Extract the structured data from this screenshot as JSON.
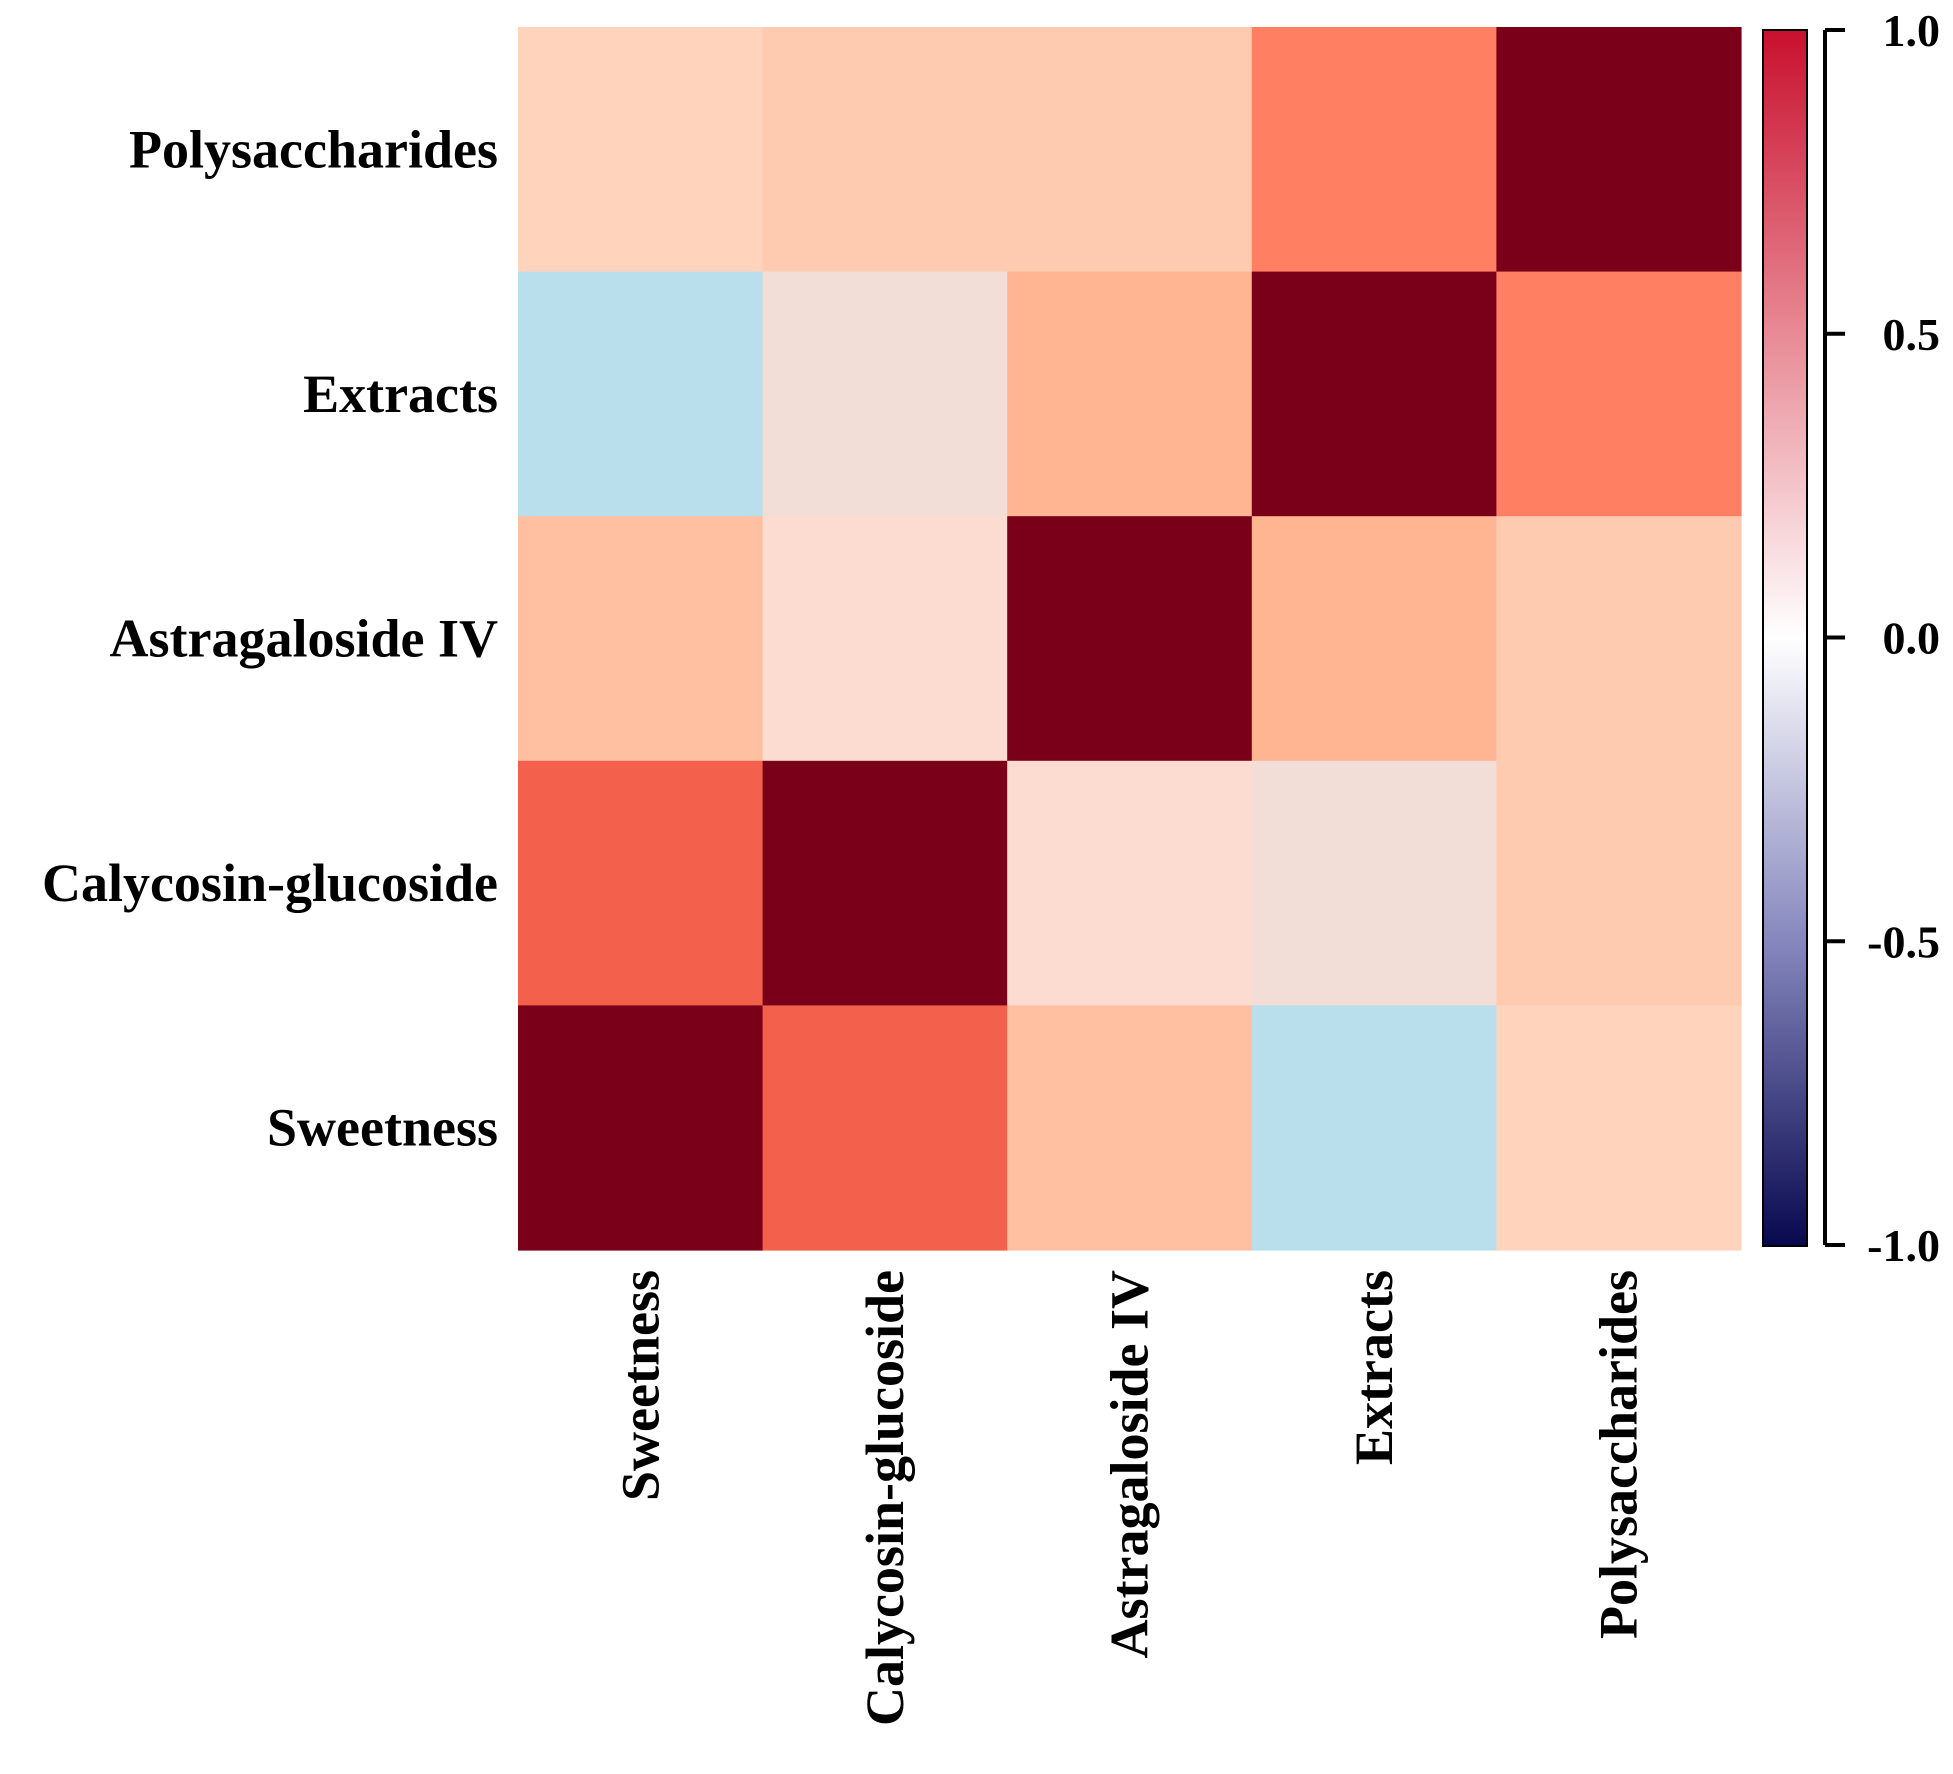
{
  "chart_data": {
    "type": "heatmap",
    "title": "",
    "xlabel": "",
    "ylabel": "",
    "rows_top_to_bottom": [
      "Polysaccharides",
      "Extracts",
      "Astragaloside IV",
      "Calycosin-glucoside",
      "Sweetness"
    ],
    "columns_left_to_right": [
      "Sweetness",
      "Calycosin-glucoside",
      "Astragaloside IV",
      "Extracts",
      "Polysaccharides"
    ],
    "values": [
      [
        0.22,
        0.25,
        0.25,
        0.65,
        1.0
      ],
      [
        -0.45,
        0.08,
        0.35,
        1.0,
        0.65
      ],
      [
        0.3,
        0.14,
        1.0,
        0.35,
        0.25
      ],
      [
        0.75,
        1.0,
        0.14,
        0.08,
        0.25
      ],
      [
        1.0,
        0.75,
        0.3,
        -0.45,
        0.22
      ]
    ],
    "colorbar": {
      "range": [
        -1.0,
        1.0
      ],
      "ticks": [
        "1.0",
        "0.5",
        "0.0",
        "-0.5",
        "-1.0"
      ],
      "tick_values": [
        1.0,
        0.5,
        0.0,
        -0.5,
        -1.0
      ],
      "colors": {
        "neg_end": "#08084f",
        "neg_mid": "#8587bd",
        "zero": "#ffffff",
        "pos_mid": "#e88a95",
        "pos_end": "#c8102e",
        "diag_max": "#7a001a",
        "warm_strong": "#ff7f63",
        "warm_mid": "#ffb490",
        "warm_light": "#ffcdb2",
        "negative_light": "#a2d4e6"
      }
    }
  }
}
